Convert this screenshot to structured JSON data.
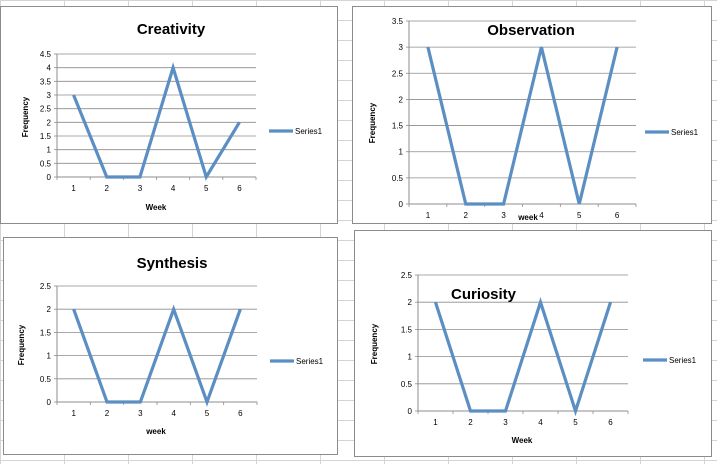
{
  "chart_data": [
    {
      "type": "line",
      "title": "Creativity",
      "xlabel": "Week",
      "ylabel": "Frequency",
      "categories": [
        "1",
        "2",
        "3",
        "4",
        "5",
        "6"
      ],
      "series": [
        {
          "name": "Series1",
          "values": [
            3,
            0,
            0,
            4,
            0,
            2
          ]
        }
      ],
      "ylim": [
        0,
        4.5
      ],
      "yticks": [
        "0",
        "0.5",
        "1",
        "1.5",
        "2",
        "2.5",
        "3",
        "3.5",
        "4",
        "4.5"
      ],
      "grid": true,
      "legend": "right",
      "color": "#5b8fc3"
    },
    {
      "type": "line",
      "title": "Observation",
      "xlabel": "week",
      "ylabel": "Frequency",
      "categories": [
        "1",
        "2",
        "3",
        "4",
        "5",
        "6"
      ],
      "series": [
        {
          "name": "Series1",
          "values": [
            3,
            0,
            0,
            3,
            0,
            3
          ]
        }
      ],
      "ylim": [
        0,
        3.5
      ],
      "yticks": [
        "0",
        "0.5",
        "1",
        "1.5",
        "2",
        "2.5",
        "3",
        "3.5"
      ],
      "grid": true,
      "legend": "right",
      "color": "#5b8fc3"
    },
    {
      "type": "line",
      "title": "Synthesis",
      "xlabel": "week",
      "ylabel": "Frequency",
      "categories": [
        "1",
        "2",
        "3",
        "4",
        "5",
        "6"
      ],
      "series": [
        {
          "name": "Series1",
          "values": [
            2,
            0,
            0,
            2,
            0,
            2
          ]
        }
      ],
      "ylim": [
        0,
        2.5
      ],
      "yticks": [
        "0",
        "0.5",
        "1",
        "1.5",
        "2",
        "2.5"
      ],
      "grid": true,
      "legend": "right",
      "color": "#5b8fc3"
    },
    {
      "type": "line",
      "title": "Curiosity",
      "xlabel": "Week",
      "ylabel": "Frequency",
      "categories": [
        "1",
        "2",
        "3",
        "4",
        "5",
        "6"
      ],
      "series": [
        {
          "name": "Series1",
          "values": [
            2,
            0,
            0,
            2,
            0,
            2
          ]
        }
      ],
      "ylim": [
        0,
        2.5
      ],
      "yticks": [
        "0",
        "0.5",
        "1",
        "1.5",
        "2",
        "2.5"
      ],
      "grid": true,
      "legend": "right",
      "color": "#5b8fc3"
    }
  ]
}
